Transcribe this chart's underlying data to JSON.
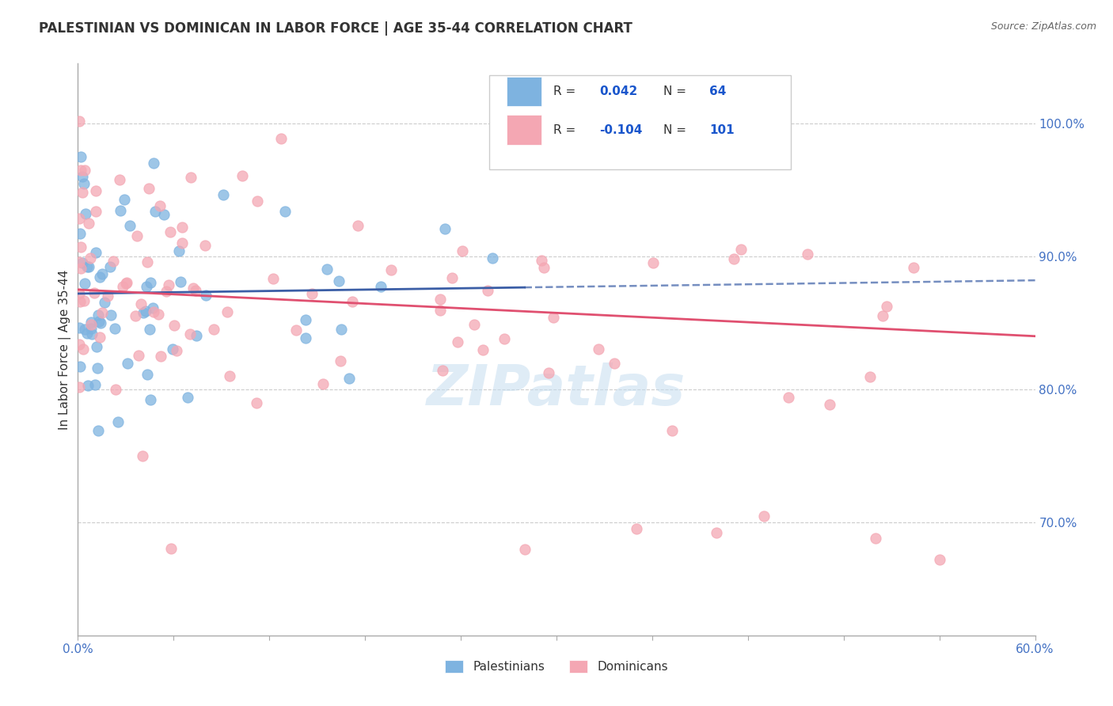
{
  "title": "PALESTINIAN VS DOMINICAN IN LABOR FORCE | AGE 35-44 CORRELATION CHART",
  "source": "Source: ZipAtlas.com",
  "ylabel": "In Labor Force | Age 35-44",
  "xlim": [
    0.0,
    0.6
  ],
  "ylim": [
    0.615,
    1.045
  ],
  "ytick_right": [
    0.7,
    0.8,
    0.9,
    1.0
  ],
  "ytick_right_labels": [
    "70.0%",
    "80.0%",
    "90.0%",
    "100.0%"
  ],
  "r_palestinian": 0.042,
  "n_palestinian": 64,
  "r_dominican": -0.104,
  "n_dominican": 101,
  "color_palestinian": "#7EB3E0",
  "color_dominican": "#F4A7B3",
  "color_trend_palestinian": "#3B5EA6",
  "color_trend_dominican": "#E05070",
  "watermark": "ZIPatlas",
  "legend_r_color": "#1a56cc",
  "legend_n_color": "#1a56cc",
  "grid_color": "#cccccc",
  "axis_label_color": "#4472C4",
  "text_color": "#333333"
}
